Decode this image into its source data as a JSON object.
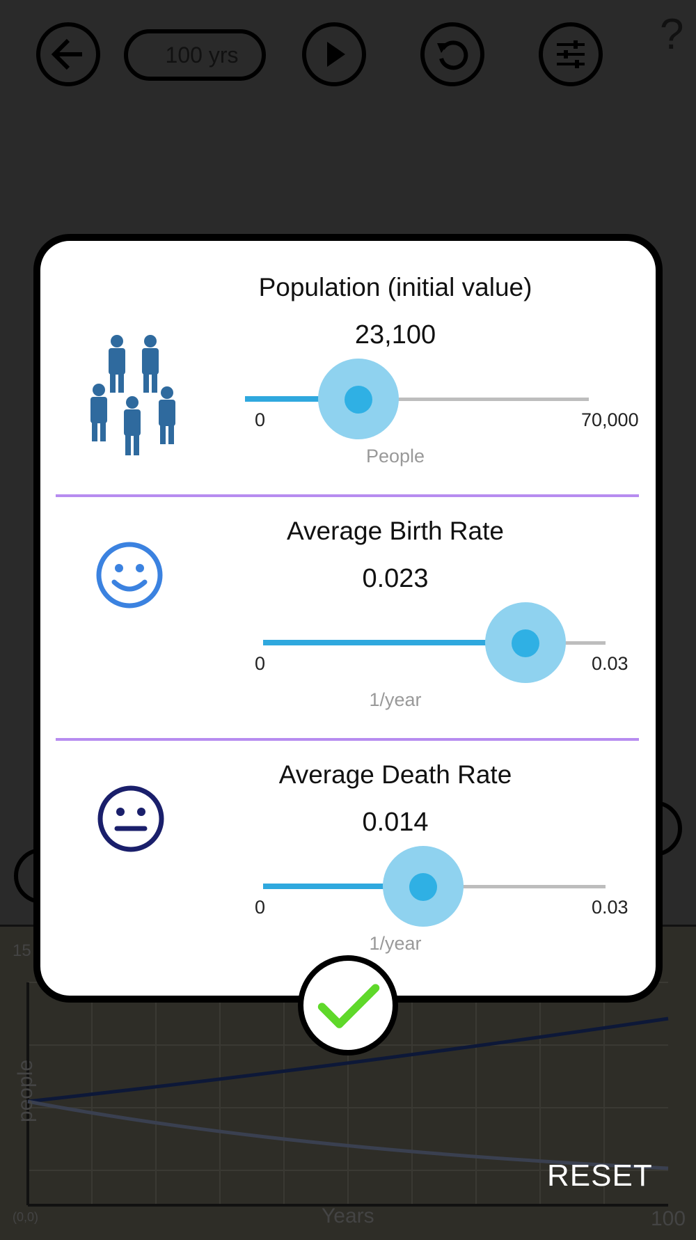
{
  "toolbar": {
    "duration_label": "100 yrs",
    "help_label": "?"
  },
  "graph": {
    "y_tick_partial": "15",
    "origin_label": "(0,0)",
    "x_max_label": "100",
    "x_axis_label": "Years",
    "y_axis_label": "people",
    "reset_label": "RESET"
  },
  "dialog": {
    "sections": [
      {
        "title": "Population (initial value)",
        "value": "23,100",
        "min": "0",
        "max": "70,000",
        "unit": "People",
        "fraction": 0.33,
        "icon": "people-group-icon"
      },
      {
        "title": "Average Birth Rate",
        "value": "0.023",
        "min": "0",
        "max": "0.03",
        "unit": "1/year",
        "fraction": 0.7667,
        "icon": "smiley-face-icon"
      },
      {
        "title": "Average Death Rate",
        "value": "0.014",
        "min": "0",
        "max": "0.03",
        "unit": "1/year",
        "fraction": 0.4667,
        "icon": "neutral-face-icon"
      }
    ]
  },
  "colors": {
    "accent": "#2fa8de",
    "divider": "#b78cf0",
    "confirm_check": "#5fd82a",
    "people_icon": "#2f6a9e",
    "smiley": "#3b82e0",
    "neutral_face": "#1a1f6b"
  }
}
